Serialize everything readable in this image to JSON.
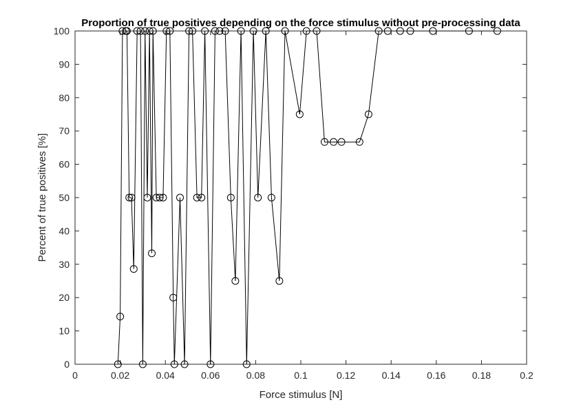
{
  "chart_data": {
    "type": "line",
    "title": "Proportion of true positives depending on the force stimulus without pre-processing data",
    "xlabel": "Force stimulus [N]",
    "ylabel": "Percent of true positives [%]",
    "xlim": [
      0,
      0.2
    ],
    "ylim": [
      0,
      100
    ],
    "xticks": [
      0,
      0.02,
      0.04,
      0.06,
      0.08,
      0.1,
      0.12,
      0.14,
      0.16,
      0.18,
      0.2
    ],
    "xtick_labels": [
      "0",
      "0.02",
      "0.04",
      "0.06",
      "0.08",
      "0.1",
      "0.12",
      "0.14",
      "0.16",
      "0.18",
      "0.2"
    ],
    "yticks": [
      0,
      10,
      20,
      30,
      40,
      50,
      60,
      70,
      80,
      90,
      100
    ],
    "ytick_labels": [
      "0",
      "10",
      "20",
      "30",
      "40",
      "50",
      "60",
      "70",
      "80",
      "90",
      "100"
    ],
    "grid": false,
    "marker": "circle",
    "line_color": "#000000",
    "series": [
      {
        "x": [
          0.019,
          0.02,
          0.021,
          0.0225,
          0.023,
          0.024,
          0.025,
          0.026,
          0.0275,
          0.029,
          0.03,
          0.031,
          0.032,
          0.033,
          0.034,
          0.0345,
          0.036,
          0.0375,
          0.039,
          0.0405,
          0.042,
          0.0435,
          0.044,
          0.0465,
          0.0485,
          0.0505,
          0.052,
          0.054,
          0.056,
          0.0575,
          0.06,
          0.062,
          0.064,
          0.0665,
          0.069,
          0.071,
          0.0735,
          0.076,
          0.079,
          0.081,
          0.0845,
          0.087,
          0.0905,
          0.093,
          0.0995,
          0.1025,
          0.107,
          0.1105,
          0.1145,
          0.118,
          0.126,
          0.13,
          0.1345,
          0.1385,
          0.144,
          0.1485,
          0.1585,
          0.1745,
          0.187
        ],
        "y": [
          0,
          14.3,
          100,
          100,
          100,
          50,
          50,
          28.6,
          100,
          100,
          0,
          100,
          50,
          100,
          33.3,
          100,
          50,
          50,
          50,
          100,
          100,
          20,
          0,
          50,
          0,
          100,
          100,
          50,
          50,
          100,
          0,
          100,
          100,
          100,
          50,
          25,
          100,
          0,
          100,
          50,
          100,
          50,
          25,
          100,
          75,
          100,
          100,
          66.7,
          66.7,
          66.7,
          66.7,
          75,
          100,
          100,
          100,
          100,
          100,
          100,
          100
        ]
      }
    ]
  }
}
